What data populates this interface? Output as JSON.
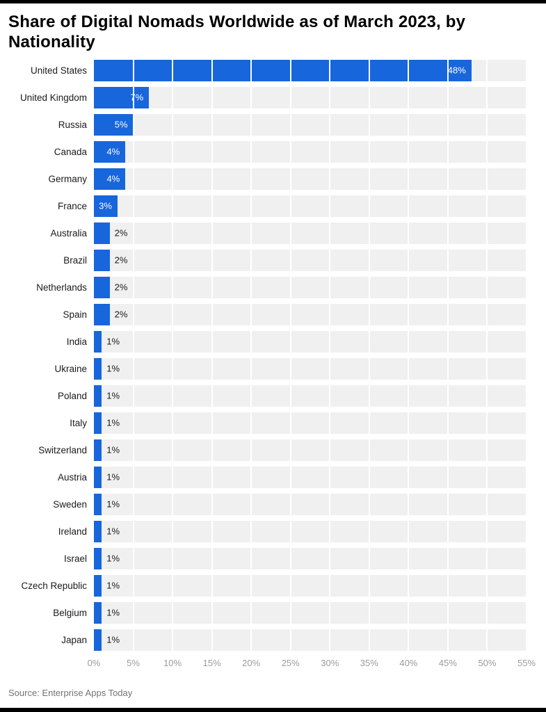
{
  "title": "Share of Digital Nomads Worldwide as of March 2023, by Nationality",
  "source": "Source: Enterprise Apps Today",
  "chart_data": {
    "type": "bar",
    "orientation": "horizontal",
    "title": "Share of Digital Nomads Worldwide as of March 2023, by Nationality",
    "xlabel": "",
    "ylabel": "",
    "xlim": [
      0,
      55
    ],
    "grid": true,
    "categories": [
      "United States",
      "United Kingdom",
      "Russia",
      "Canada",
      "Germany",
      "France",
      "Australia",
      "Brazil",
      "Netherlands",
      "Spain",
      "India",
      "Ukraine",
      "Poland",
      "Italy",
      "Switzerland",
      "Austria",
      "Sweden",
      "Ireland",
      "Israel",
      "Czech Republic",
      "Belgium",
      "Japan"
    ],
    "values": [
      48,
      7,
      5,
      4,
      4,
      3,
      2,
      2,
      2,
      2,
      1,
      1,
      1,
      1,
      1,
      1,
      1,
      1,
      1,
      1,
      1,
      1
    ],
    "value_labels": [
      "48%",
      "7%",
      "5%",
      "4%",
      "4%",
      "3%",
      "2%",
      "2%",
      "2%",
      "2%",
      "1%",
      "1%",
      "1%",
      "1%",
      "1%",
      "1%",
      "1%",
      "1%",
      "1%",
      "1%",
      "1%",
      "1%"
    ],
    "x_tick_labels": [
      "0%",
      "5%",
      "10%",
      "15%",
      "20%",
      "25%",
      "30%",
      "35%",
      "40%",
      "45%",
      "50%",
      "55%"
    ],
    "x_tick_values": [
      0,
      5,
      10,
      15,
      20,
      25,
      30,
      35,
      40,
      45,
      50,
      55
    ],
    "bar_color": "#1766dc",
    "track_color": "#f0f0f0",
    "inside_label_min_value": 3
  }
}
